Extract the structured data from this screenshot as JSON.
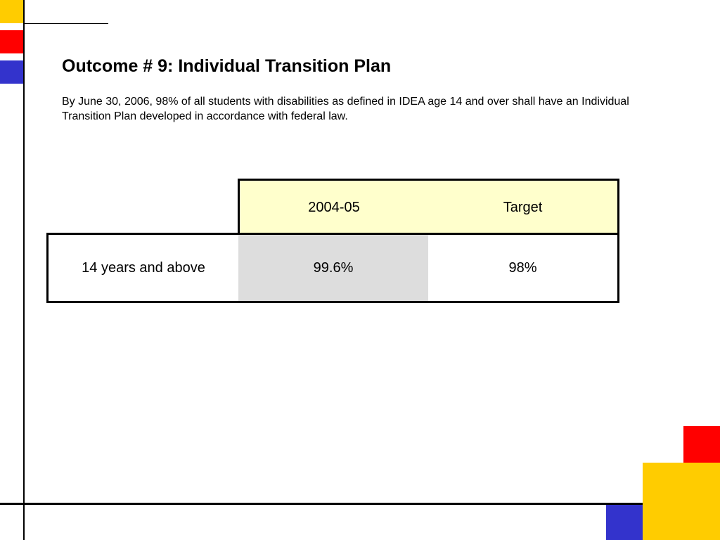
{
  "slide": {
    "title": "Outcome # 9: Individual Transition Plan",
    "description": "By June 30, 2006, 98% of all students with disabilities as defined in IDEA age 14 and over shall have an Individual Transition Plan developed in accordance with federal law."
  },
  "table": {
    "headers": [
      "",
      "2004-05",
      "Target"
    ],
    "rows": [
      [
        "14 years and above",
        "99.6%",
        "98%"
      ]
    ]
  },
  "colors": {
    "yellow": "#FFCC00",
    "red": "#FF0000",
    "blue": "#3333CC",
    "header_fill": "#FFFFCC",
    "highlight_fill": "#DDDDDD"
  }
}
